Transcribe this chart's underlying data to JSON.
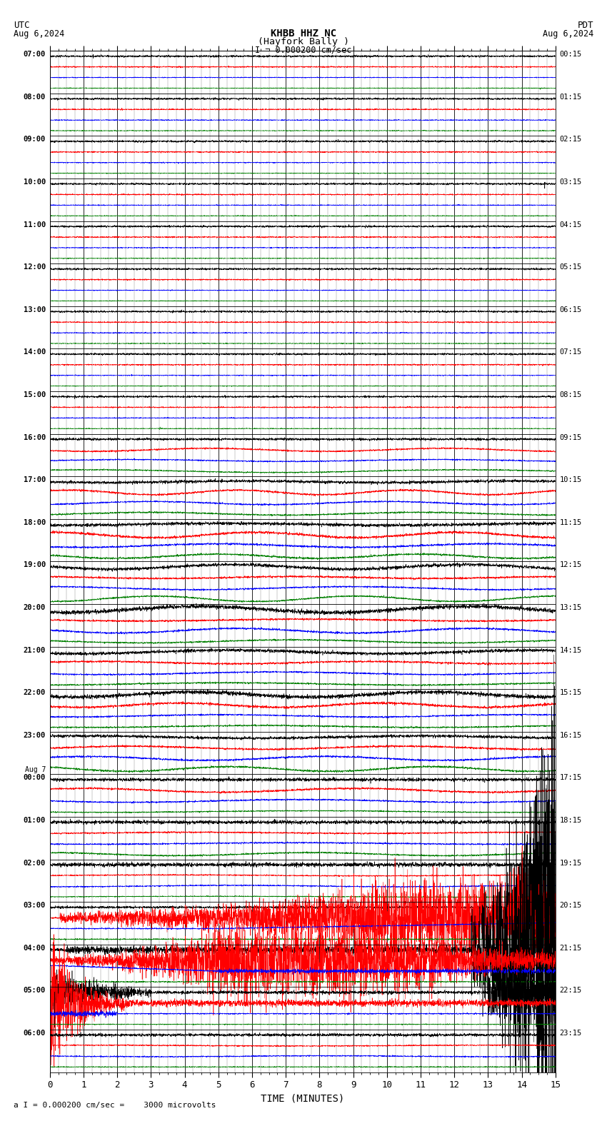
{
  "title_line1": "KHBB HHZ NC",
  "title_line2": "(Hayfork Bally )",
  "scale_label": "I = 0.000200 cm/sec",
  "bottom_label": "a I = 0.000200 cm/sec =    3000 microvolts",
  "utc_label": "UTC",
  "utc_date": "Aug 6,2024",
  "pdt_label": "PDT",
  "pdt_date": "Aug 6,2024",
  "xlabel": "TIME (MINUTES)",
  "left_times": [
    "07:00",
    "08:00",
    "09:00",
    "10:00",
    "11:00",
    "12:00",
    "13:00",
    "14:00",
    "15:00",
    "16:00",
    "17:00",
    "18:00",
    "19:00",
    "20:00",
    "21:00",
    "22:00",
    "23:00",
    "Aug 7\n00:00",
    "01:00",
    "02:00",
    "03:00",
    "04:00",
    "05:00",
    "06:00"
  ],
  "right_times": [
    "00:15",
    "01:15",
    "02:15",
    "03:15",
    "04:15",
    "05:15",
    "06:15",
    "07:15",
    "08:15",
    "09:15",
    "10:15",
    "11:15",
    "12:15",
    "13:15",
    "14:15",
    "15:15",
    "16:15",
    "17:15",
    "18:15",
    "19:15",
    "20:15",
    "21:15",
    "22:15",
    "23:15"
  ],
  "n_rows": 24,
  "bg_color": "#ffffff",
  "colors": [
    "black",
    "red",
    "blue",
    "green"
  ]
}
